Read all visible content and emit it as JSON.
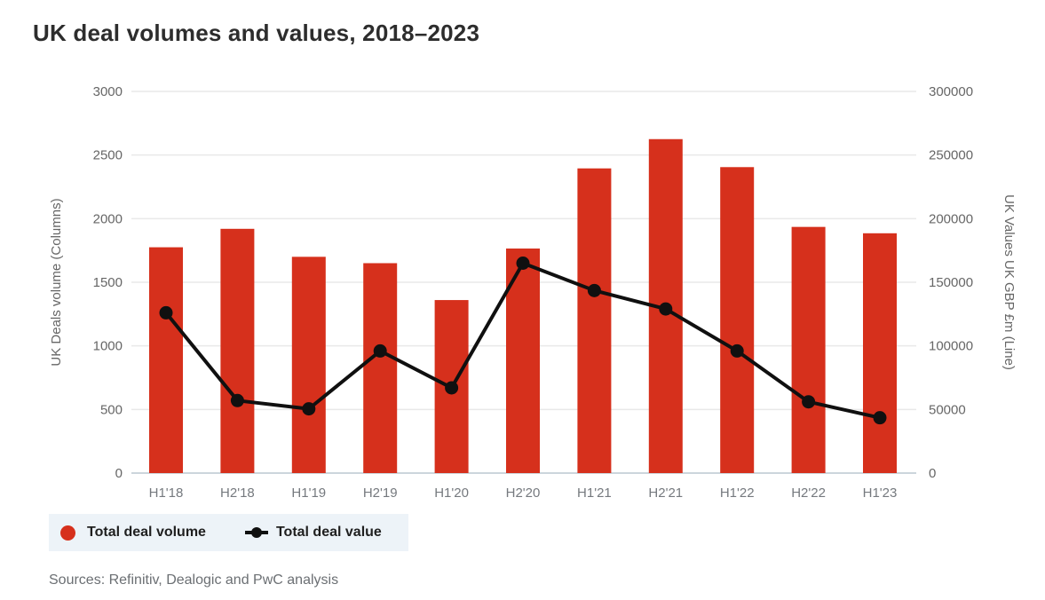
{
  "title": "UK deal volumes and values, 2018–2023",
  "source_note": "Sources: Refinitiv, Dealogic and PwC analysis",
  "colors": {
    "bar": "#d6301c",
    "line": "#101010",
    "grid": "#e9e9e9",
    "baseline": "#ccd5dc",
    "axis_tick_text": "#666666",
    "x_label_text": "#75797e",
    "title_text": "#2d2d2d",
    "legend_bg": "#edf3f8",
    "source_text": "#6b6f73"
  },
  "legend": {
    "items": [
      {
        "label": "Total deal volume",
        "type": "bar",
        "swatch": "red-circle"
      },
      {
        "label": "Total deal value",
        "type": "line",
        "swatch": "black-line-dot"
      }
    ]
  },
  "chart_data": {
    "type": "bar",
    "subtype": "bar+line combo, dual axis",
    "title": "UK deal volumes and values, 2018–2023",
    "categories": [
      "H1'18",
      "H2'18",
      "H1'19",
      "H2'19",
      "H1'20",
      "H2'20",
      "H1'21",
      "H2'21",
      "H1'22",
      "H2'22",
      "H1'23"
    ],
    "series": [
      {
        "name": "Total deal volume",
        "type": "bar",
        "axis": "left",
        "values": [
          1775,
          1920,
          1700,
          1650,
          1360,
          1765,
          2395,
          2625,
          2405,
          1935,
          1885
        ]
      },
      {
        "name": "Total deal value",
        "type": "line",
        "axis": "right",
        "values": [
          126000,
          57000,
          50500,
          96000,
          67000,
          165000,
          143500,
          129000,
          96000,
          56000,
          43500
        ]
      }
    ],
    "left_axis": {
      "label": "UK Deals volume (Columns)",
      "min": 0,
      "max": 3000,
      "step": 500,
      "ticks": [
        0,
        500,
        1000,
        1500,
        2000,
        2500,
        3000
      ]
    },
    "right_axis": {
      "label": "UK Values UK GBP £m (Line)",
      "min": 0,
      "max": 300000,
      "step": 50000,
      "ticks": [
        0,
        50000,
        100000,
        150000,
        200000,
        250000,
        300000
      ]
    },
    "grid": true,
    "legend_position": "bottom-left"
  }
}
